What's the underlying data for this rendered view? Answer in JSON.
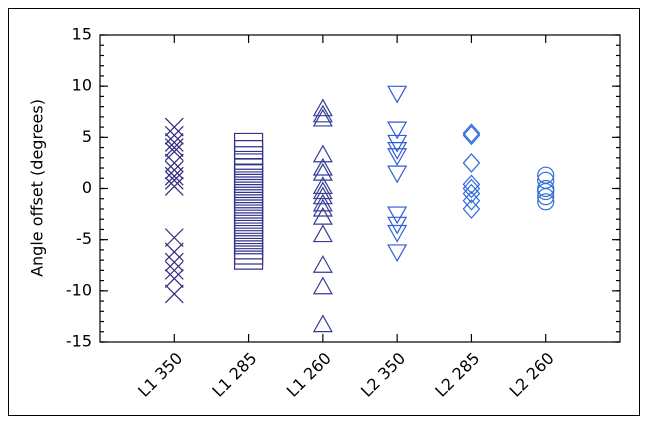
{
  "chart_data": {
    "type": "scatter",
    "y_label": "Angle offset (degrees)",
    "categories": [
      "L1 350",
      "L1 285",
      "L1 260",
      "L2 350",
      "L2 285",
      "L2 260"
    ],
    "markers": [
      "x",
      "square",
      "triangle-up",
      "triangle-down",
      "diamond",
      "circle"
    ],
    "colors": [
      "#2f2a7e",
      "#34328a",
      "#363c96",
      "#2f5bd6",
      "#2e68df",
      "#3270d8"
    ],
    "values": [
      [
        6.0,
        5.2,
        4.5,
        4.0,
        3.6,
        2.5,
        1.8,
        1.2,
        0.8,
        0.2,
        -4.8,
        -6.2,
        -7.2,
        -8.0,
        -8.8,
        -10.3
      ],
      [
        4.5,
        3.8,
        3.2,
        2.5,
        2.0,
        1.5,
        1.0,
        0.5,
        0,
        -0.5,
        -1.0,
        -1.5,
        -2.0,
        -2.5,
        -3.0,
        -3.5,
        -4.0,
        -4.5,
        -5.0,
        -5.5,
        -6.0,
        -6.5,
        -7.0
      ],
      [
        7.8,
        7.2,
        6.8,
        3.3,
        2.0,
        1.5,
        0.2,
        -0.3,
        -0.8,
        -1.5,
        -2.0,
        -2.8,
        -4.5,
        -7.5,
        -9.6,
        -13.3
      ],
      [
        9.3,
        5.8,
        4.5,
        3.8,
        3.2,
        1.5,
        -2.5,
        -3.5,
        -4.3,
        -6.2
      ],
      [
        5.4,
        5.2,
        2.5,
        0.4,
        0,
        -0.5,
        -1.2,
        -2.0
      ],
      [
        1.3,
        0.8,
        0,
        -0.3,
        -0.8,
        -1.3
      ]
    ],
    "ylim": [
      -15,
      15
    ],
    "yticks": [
      -15,
      -10,
      -5,
      0,
      5,
      10,
      15
    ]
  }
}
